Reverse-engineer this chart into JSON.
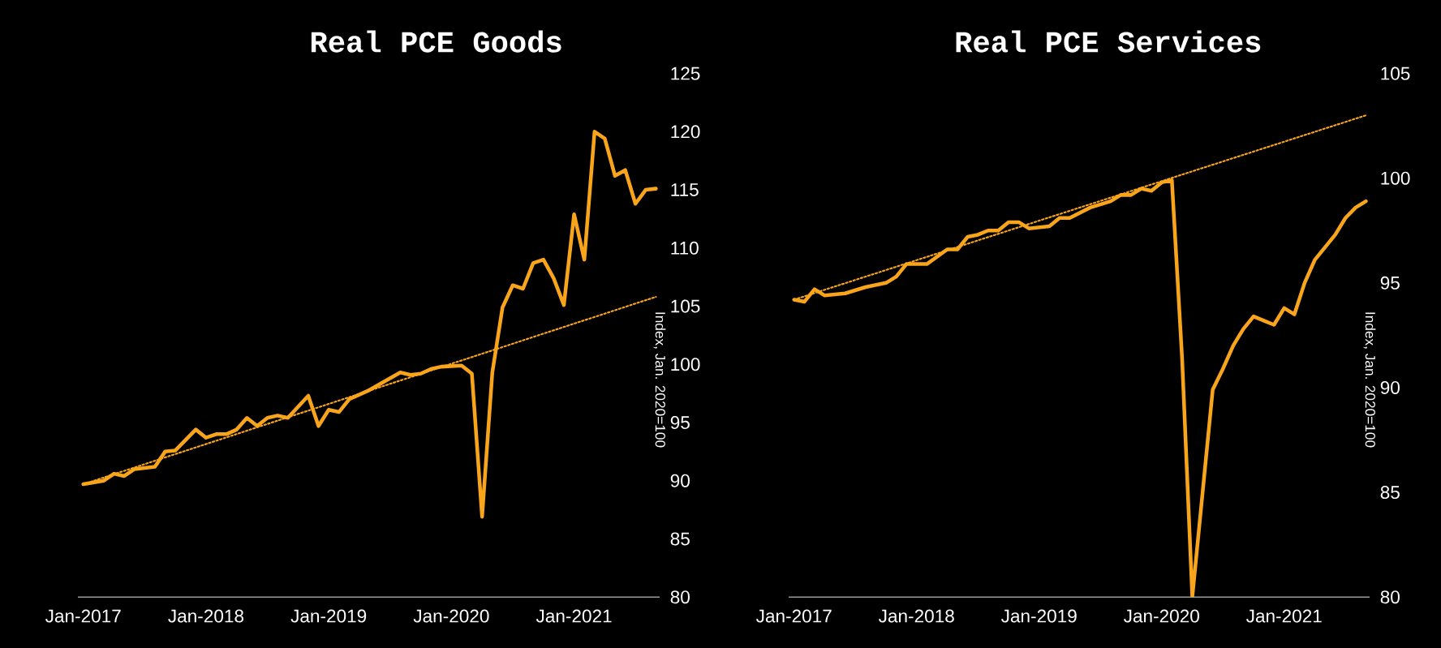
{
  "chart_data": [
    {
      "type": "line",
      "title": "Real PCE Goods",
      "ylabel": "Index, Jan. 2020=100",
      "ylim": [
        80,
        125
      ],
      "yticks": [
        80,
        85,
        90,
        95,
        100,
        105,
        110,
        115,
        120,
        125
      ],
      "xlim": [
        "2016-12-15",
        "2021-09-12"
      ],
      "xticks": [
        {
          "value": "2017-01",
          "label": "Jan-2017"
        },
        {
          "value": "2018-01",
          "label": "Jan-2018"
        },
        {
          "value": "2019-01",
          "label": "Jan-2019"
        },
        {
          "value": "2020-01",
          "label": "Jan-2020"
        },
        {
          "value": "2021-01",
          "label": "Jan-2021"
        }
      ],
      "grid": false,
      "series": [
        {
          "color": "#f9a51b",
          "x": [
            "2017-01",
            "2017-03",
            "2017-04",
            "2017-05",
            "2017-06",
            "2017-08",
            "2017-09",
            "2017-10",
            "2017-12",
            "2018-01",
            "2018-02",
            "2018-03",
            "2018-04",
            "2018-05",
            "2018-06",
            "2018-07",
            "2018-08",
            "2018-09",
            "2018-11",
            "2018-12",
            "2019-01",
            "2019-02",
            "2019-03",
            "2019-05",
            "2019-08",
            "2019-09",
            "2019-10",
            "2019-11",
            "2019-12",
            "2020-02",
            "2020-03",
            "2020-04",
            "2020-05",
            "2020-06",
            "2020-07",
            "2020-08",
            "2020-09",
            "2020-10",
            "2020-11",
            "2020-12",
            "2021-01",
            "2021-02",
            "2021-03",
            "2021-04",
            "2021-05",
            "2021-06",
            "2021-07",
            "2021-08",
            "2021-09"
          ],
          "values": [
            89.7,
            90.0,
            90.6,
            90.4,
            91.0,
            91.2,
            92.5,
            92.6,
            94.4,
            93.7,
            94.0,
            94.0,
            94.4,
            95.4,
            94.7,
            95.4,
            95.6,
            95.4,
            97.3,
            94.7,
            96.1,
            95.9,
            97.0,
            97.8,
            99.3,
            99.1,
            99.2,
            99.6,
            99.8,
            99.9,
            99.2,
            86.9,
            99.3,
            104.9,
            106.8,
            106.5,
            108.7,
            109.0,
            107.4,
            105.1,
            112.9,
            109.0,
            120.0,
            119.4,
            116.2,
            116.7,
            113.8,
            115.0,
            115.1
          ]
        },
        {
          "type": "line",
          "line_style": "dotted",
          "color": "#f9a51b",
          "x": [
            "2017-01",
            "2021-09"
          ],
          "values": [
            89.7,
            105.8
          ]
        }
      ]
    },
    {
      "type": "line",
      "title": "Real PCE Services",
      "ylabel": "Index, Jan. 2020=100",
      "ylim": [
        80,
        105
      ],
      "yticks": [
        80,
        85,
        90,
        95,
        100,
        105
      ],
      "xlim": [
        "2016-12-15",
        "2021-09-12"
      ],
      "xticks": [
        {
          "value": "2017-01",
          "label": "Jan-2017"
        },
        {
          "value": "2018-01",
          "label": "Jan-2018"
        },
        {
          "value": "2019-01",
          "label": "Jan-2019"
        },
        {
          "value": "2020-01",
          "label": "Jan-2020"
        },
        {
          "value": "2021-01",
          "label": "Jan-2021"
        }
      ],
      "grid": false,
      "series": [
        {
          "color": "#f9a51b",
          "x": [
            "2017-01",
            "2017-02",
            "2017-03",
            "2017-04",
            "2017-06",
            "2017-08",
            "2017-10",
            "2017-11",
            "2017-12",
            "2018-02",
            "2018-04",
            "2018-05",
            "2018-06",
            "2018-07",
            "2018-08",
            "2018-09",
            "2018-10",
            "2018-11",
            "2018-12",
            "2019-02",
            "2019-03",
            "2019-04",
            "2019-06",
            "2019-08",
            "2019-09",
            "2019-10",
            "2019-11",
            "2019-12",
            "2020-01",
            "2020-02",
            "2020-03",
            "2020-04",
            "2020-06",
            "2020-07",
            "2020-08",
            "2020-09",
            "2020-10",
            "2020-11",
            "2020-12",
            "2021-01",
            "2021-02",
            "2021-03",
            "2021-04",
            "2021-06",
            "2021-07",
            "2021-08",
            "2021-09"
          ],
          "values": [
            94.2,
            94.1,
            94.7,
            94.4,
            94.5,
            94.8,
            95.0,
            95.3,
            95.9,
            95.9,
            96.6,
            96.6,
            97.2,
            97.3,
            97.5,
            97.5,
            97.9,
            97.9,
            97.6,
            97.7,
            98.1,
            98.1,
            98.6,
            98.9,
            99.2,
            99.2,
            99.5,
            99.4,
            99.8,
            99.9,
            91.4,
            80,
            89.9,
            90.9,
            92.0,
            92.8,
            93.4,
            93.2,
            93.0,
            93.8,
            93.5,
            95.0,
            96.1,
            97.3,
            98.1,
            98.6,
            98.9
          ]
        },
        {
          "type": "line",
          "line_style": "dotted",
          "color": "#f9a51b",
          "x": [
            "2017-01",
            "2021-09"
          ],
          "values": [
            94.2,
            103.0
          ]
        }
      ]
    }
  ]
}
